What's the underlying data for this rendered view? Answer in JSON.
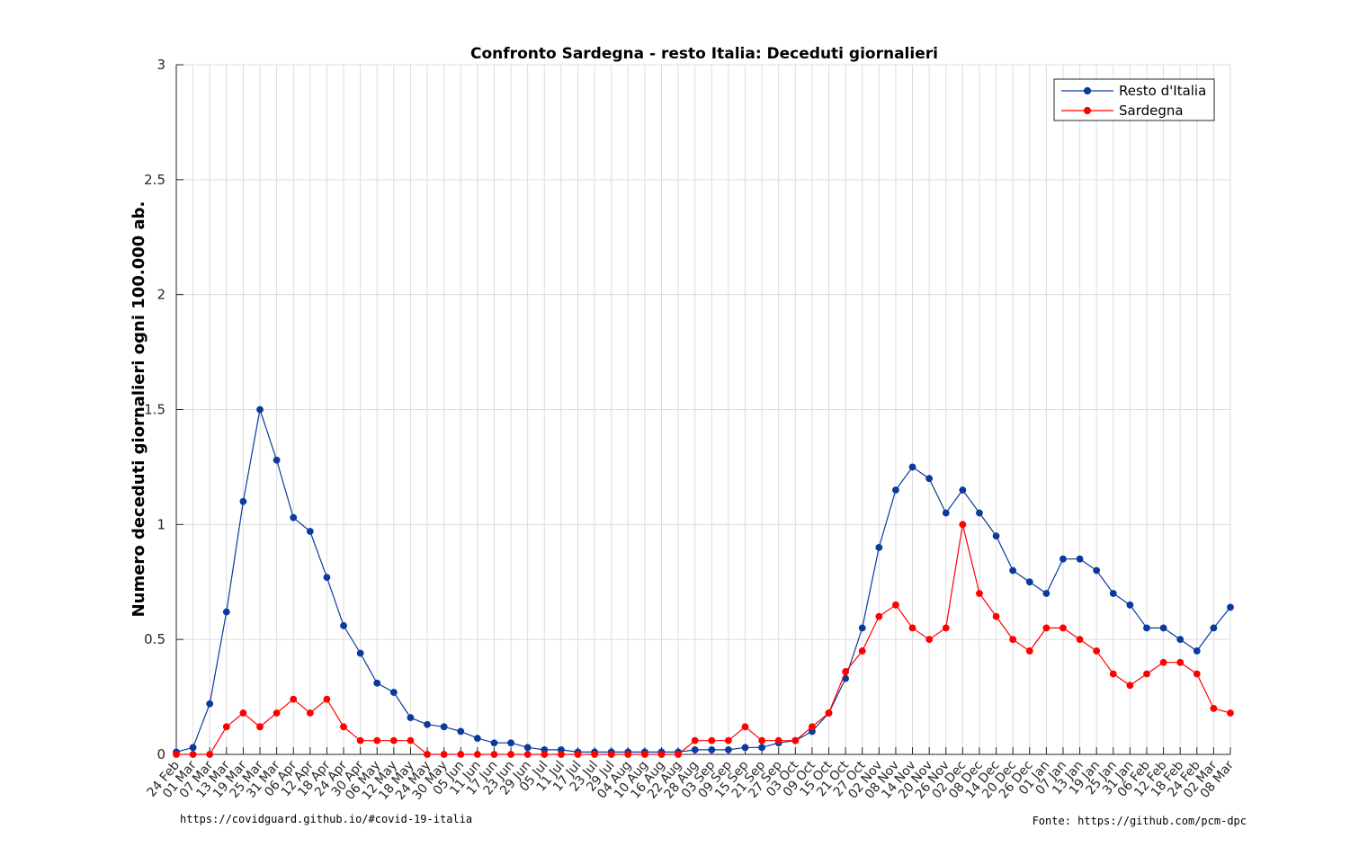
{
  "chart_data": {
    "type": "line",
    "title": "Confronto Sardegna - resto Italia: Deceduti giornalieri",
    "ylabel": "Numero deceduti giornalieri ogni 100.000 ab.",
    "xlabel": "",
    "ylim": [
      0,
      3
    ],
    "yticks": [
      0,
      0.5,
      1,
      1.5,
      2,
      2.5,
      3
    ],
    "grid": true,
    "legend_position": "top-right",
    "x": [
      "24 Feb",
      "01 Mar",
      "07 Mar",
      "13 Mar",
      "19 Mar",
      "25 Mar",
      "31 Mar",
      "06 Apr",
      "12 Apr",
      "18 Apr",
      "24 Apr",
      "30 Apr",
      "06 May",
      "12 May",
      "18 May",
      "24 May",
      "30 May",
      "05 Jun",
      "11 Jun",
      "17 Jun",
      "23 Jun",
      "29 Jun",
      "05 Jul",
      "11 Jul",
      "17 Jul",
      "23 Jul",
      "29 Jul",
      "04 Aug",
      "10 Aug",
      "16 Aug",
      "22 Aug",
      "28 Aug",
      "03 Sep",
      "09 Sep",
      "15 Sep",
      "21 Sep",
      "27 Sep",
      "03 Oct",
      "09 Oct",
      "15 Oct",
      "21 Oct",
      "27 Oct",
      "02 Nov",
      "08 Nov",
      "14 Nov",
      "20 Nov",
      "26 Nov",
      "02 Dec",
      "08 Dec",
      "14 Dec",
      "20 Dec",
      "26 Dec",
      "01 Jan",
      "07 Jan",
      "13 Jan",
      "19 Jan",
      "25 Jan",
      "31 Jan",
      "06 Feb",
      "12 Feb",
      "18 Feb",
      "24 Feb",
      "02 Mar",
      "08 Mar"
    ],
    "series": [
      {
        "name": "Resto d'Italia",
        "color": "#0b3a9c",
        "values": [
          0.01,
          0.03,
          0.22,
          0.62,
          1.1,
          1.5,
          1.28,
          1.03,
          0.97,
          0.77,
          0.56,
          0.44,
          0.31,
          0.27,
          0.16,
          0.13,
          0.12,
          0.1,
          0.07,
          0.05,
          0.05,
          0.03,
          0.02,
          0.02,
          0.01,
          0.01,
          0.01,
          0.01,
          0.01,
          0.01,
          0.01,
          0.02,
          0.02,
          0.02,
          0.03,
          0.03,
          0.05,
          0.06,
          0.1,
          0.18,
          0.33,
          0.55,
          0.9,
          1.15,
          1.25,
          1.2,
          1.05,
          1.15,
          1.05,
          0.95,
          0.8,
          0.75,
          0.7,
          0.85,
          0.85,
          0.8,
          0.7,
          0.65,
          0.55,
          0.55,
          0.5,
          0.45,
          0.55,
          0.64
        ]
      },
      {
        "name": "Sardegna",
        "color": "#ff0000",
        "values": [
          0,
          0,
          0,
          0.12,
          0.18,
          0.12,
          0.18,
          0.24,
          0.18,
          0.24,
          0.12,
          0.06,
          0.06,
          0.06,
          0.06,
          0,
          0,
          0,
          0,
          0,
          0,
          0,
          0,
          0,
          0,
          0,
          0,
          0,
          0,
          0,
          0,
          0.06,
          0.06,
          0.06,
          0.12,
          0.06,
          0.06,
          0.06,
          0.12,
          0.18,
          0.36,
          0.45,
          0.6,
          0.65,
          0.55,
          0.5,
          0.55,
          1.0,
          0.7,
          0.6,
          0.5,
          0.45,
          0.55,
          0.55,
          0.5,
          0.45,
          0.35,
          0.3,
          0.35,
          0.4,
          0.4,
          0.35,
          0.2,
          0.18
        ]
      }
    ]
  },
  "footer": {
    "left": "https://covidguard.github.io/#covid-19-italia",
    "right": "Fonte: https://github.com/pcm-dpc"
  }
}
